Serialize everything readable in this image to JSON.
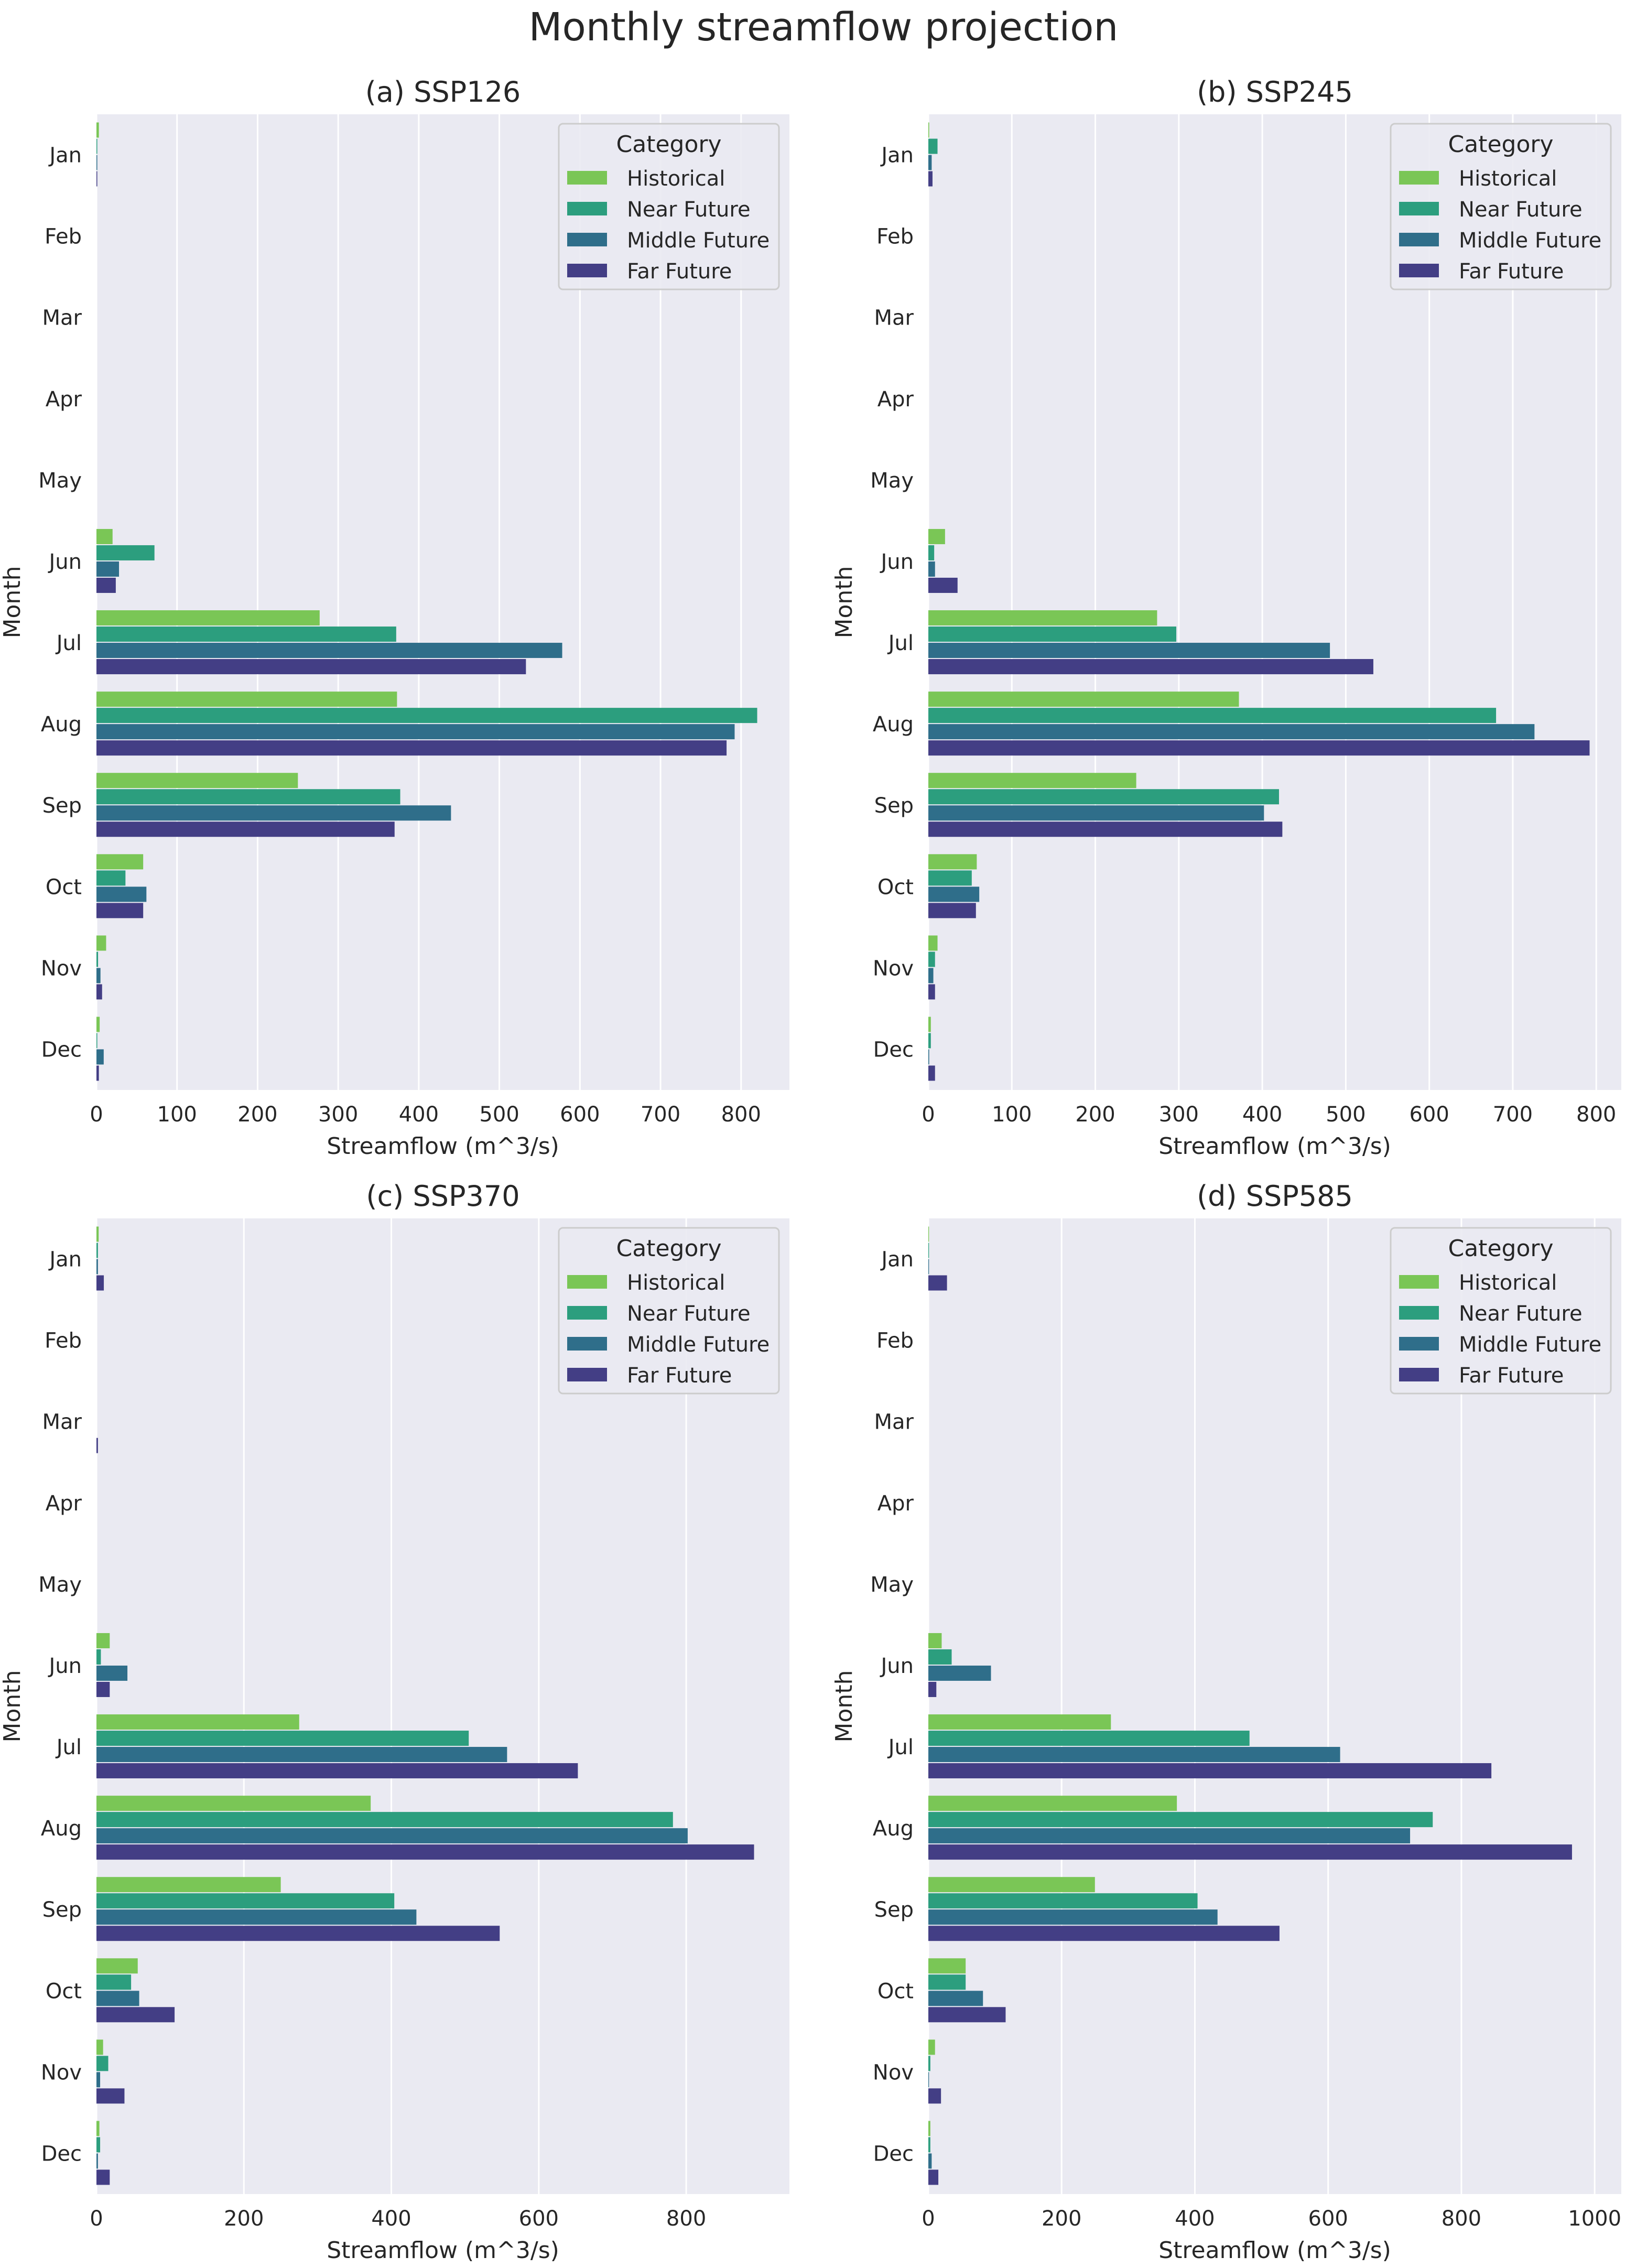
{
  "figure": {
    "title": "Monthly streamflow projection",
    "legend_title": "Category",
    "colors": {
      "Historical": "#7AC656",
      "Near Future": "#2C9E7E",
      "Middle Future": "#2F6E8A",
      "Far Future": "#433E85",
      "plot_bg": "#EAEAF2",
      "grid": "#FFFFFF",
      "text": "#262626"
    }
  },
  "chart_data": [
    {
      "type": "bar",
      "orientation": "horizontal",
      "title": "(a) SSP126",
      "xlabel": "Streamflow (m^3/s)",
      "ylabel": "Month",
      "categories": [
        "Jan",
        "Feb",
        "Mar",
        "Apr",
        "May",
        "Jun",
        "Jul",
        "Aug",
        "Sep",
        "Oct",
        "Nov",
        "Dec"
      ],
      "xlim": [
        0,
        860
      ],
      "xticks": [
        0,
        100,
        200,
        300,
        400,
        500,
        600,
        700,
        800
      ],
      "legend_title": "Category",
      "legend_position": "top-right",
      "series": [
        {
          "name": "Historical",
          "values": [
            3,
            0,
            0,
            0,
            0,
            20,
            277,
            373,
            250,
            58,
            12,
            4
          ]
        },
        {
          "name": "Near Future",
          "values": [
            1,
            0,
            0,
            0,
            0,
            72,
            372,
            820,
            377,
            36,
            2,
            1
          ]
        },
        {
          "name": "Middle Future",
          "values": [
            1,
            0,
            0,
            0,
            0,
            28,
            578,
            792,
            440,
            62,
            5,
            9
          ]
        },
        {
          "name": "Far Future",
          "values": [
            1,
            0,
            0,
            0,
            0,
            24,
            533,
            782,
            370,
            58,
            7,
            3
          ]
        }
      ]
    },
    {
      "type": "bar",
      "orientation": "horizontal",
      "title": "(b) SSP245",
      "xlabel": "Streamflow (m^3/s)",
      "ylabel": "Month",
      "categories": [
        "Jan",
        "Feb",
        "Mar",
        "Apr",
        "May",
        "Jun",
        "Jul",
        "Aug",
        "Sep",
        "Oct",
        "Nov",
        "Dec"
      ],
      "xlim": [
        0,
        830
      ],
      "xticks": [
        0,
        100,
        200,
        300,
        400,
        500,
        600,
        700,
        800
      ],
      "legend_title": "Category",
      "legend_position": "top-right",
      "series": [
        {
          "name": "Historical",
          "values": [
            1,
            0,
            0,
            0,
            0,
            20,
            274,
            372,
            249,
            58,
            11,
            3
          ]
        },
        {
          "name": "Near Future",
          "values": [
            11,
            0,
            0,
            0,
            0,
            7,
            297,
            680,
            420,
            52,
            8,
            3
          ]
        },
        {
          "name": "Middle Future",
          "values": [
            4,
            0,
            0,
            0,
            0,
            8,
            481,
            726,
            402,
            61,
            6,
            1
          ]
        },
        {
          "name": "Far Future",
          "values": [
            5,
            0,
            0,
            0,
            0,
            35,
            533,
            792,
            424,
            57,
            8,
            8
          ]
        }
      ]
    },
    {
      "type": "bar",
      "orientation": "horizontal",
      "title": "(c) SSP370",
      "xlabel": "Streamflow (m^3/s)",
      "ylabel": "Month",
      "categories": [
        "Jan",
        "Feb",
        "Mar",
        "Apr",
        "May",
        "Jun",
        "Jul",
        "Aug",
        "Sep",
        "Oct",
        "Nov",
        "Dec"
      ],
      "xlim": [
        0,
        940
      ],
      "xticks": [
        0,
        200,
        400,
        600,
        800
      ],
      "legend_title": "Category",
      "legend_position": "top-right",
      "series": [
        {
          "name": "Historical",
          "values": [
            3,
            0,
            0,
            0,
            0,
            18,
            275,
            372,
            250,
            56,
            9,
            4
          ]
        },
        {
          "name": "Near Future",
          "values": [
            2,
            0,
            0,
            0,
            0,
            6,
            505,
            782,
            404,
            47,
            16,
            5
          ]
        },
        {
          "name": "Middle Future",
          "values": [
            2,
            0,
            0,
            0,
            0,
            42,
            557,
            802,
            434,
            58,
            5,
            2
          ]
        },
        {
          "name": "Far Future",
          "values": [
            10,
            0,
            2,
            0,
            0,
            18,
            653,
            892,
            547,
            106,
            38,
            18
          ]
        }
      ]
    },
    {
      "type": "bar",
      "orientation": "horizontal",
      "title": "(d) SSP585",
      "xlabel": "Streamflow (m^3/s)",
      "ylabel": "Month",
      "categories": [
        "Jan",
        "Feb",
        "Mar",
        "Apr",
        "May",
        "Jun",
        "Jul",
        "Aug",
        "Sep",
        "Oct",
        "Nov",
        "Dec"
      ],
      "xlim": [
        0,
        1040
      ],
      "xticks": [
        0,
        200,
        400,
        600,
        800,
        1000
      ],
      "legend_title": "Category",
      "legend_position": "top-right",
      "series": [
        {
          "name": "Historical",
          "values": [
            1,
            0,
            0,
            0,
            0,
            20,
            274,
            373,
            250,
            56,
            10,
            3
          ]
        },
        {
          "name": "Near Future",
          "values": [
            1,
            0,
            0,
            0,
            0,
            35,
            482,
            757,
            404,
            56,
            3,
            3
          ]
        },
        {
          "name": "Middle Future",
          "values": [
            1,
            0,
            0,
            0,
            0,
            94,
            618,
            723,
            434,
            82,
            1,
            5
          ]
        },
        {
          "name": "Far Future",
          "values": [
            28,
            0,
            0,
            0,
            0,
            12,
            845,
            966,
            527,
            116,
            19,
            15
          ]
        }
      ]
    }
  ]
}
